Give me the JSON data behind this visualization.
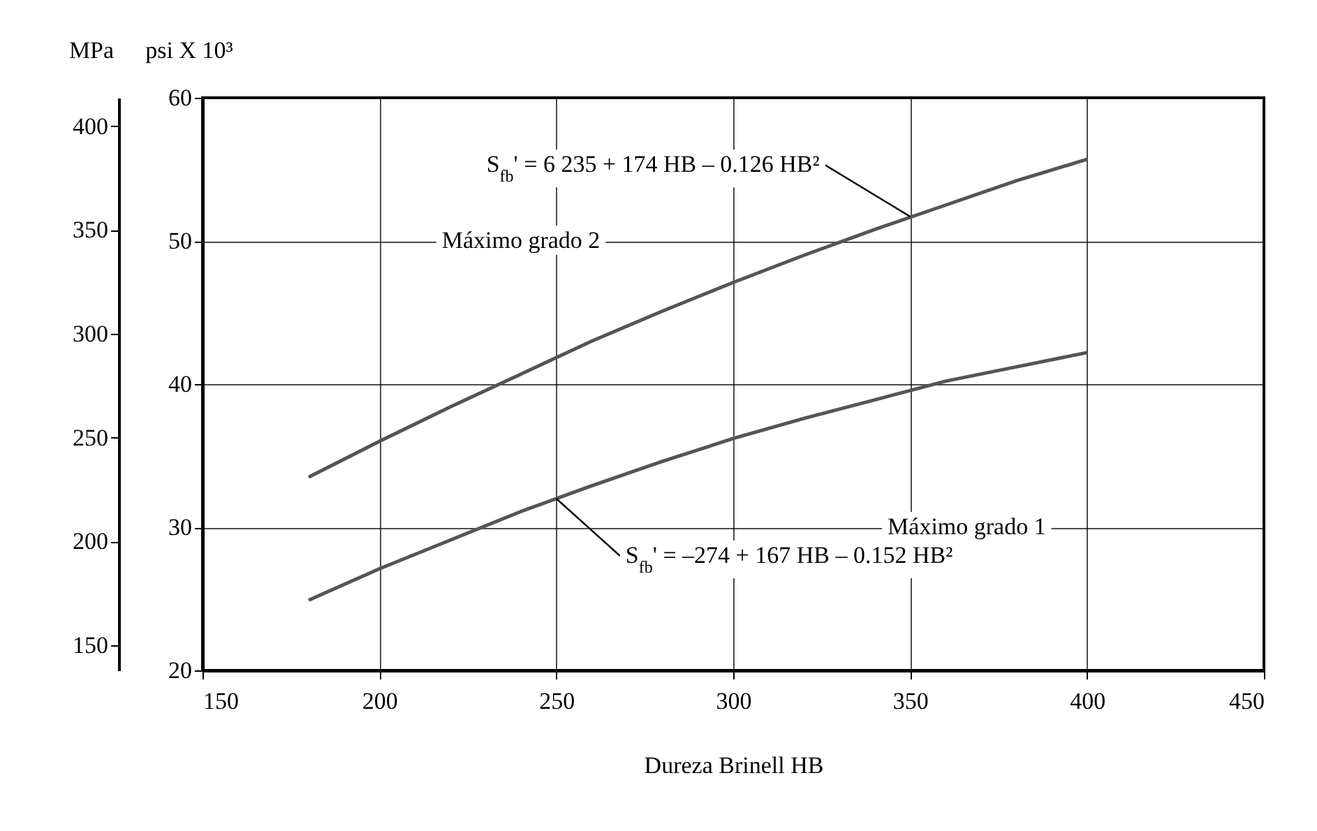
{
  "chart_data": {
    "type": "line",
    "xlabel": "Dureza Brinell HB",
    "ylabel": "psi X 10³",
    "y2label": "MPa",
    "x": [
      180,
      200,
      220,
      240,
      260,
      280,
      300,
      320,
      340,
      360,
      380,
      400
    ],
    "series": [
      {
        "color": "#555555",
        "values": [
          33.5,
          36.0,
          38.4,
          40.7,
          43.0,
          45.1,
          47.1,
          49.0,
          50.8,
          52.5,
          54.2,
          55.7
        ]
      },
      {
        "color": "#555555",
        "values": [
          24.9,
          27.1,
          29.1,
          31.1,
          32.9,
          34.6,
          36.2,
          37.6,
          38.9,
          40.2,
          41.2,
          42.2
        ]
      }
    ],
    "xlim": [
      150,
      450
    ],
    "xticks": [
      150,
      200,
      250,
      300,
      350,
      400,
      450
    ],
    "ylim": [
      20,
      60
    ],
    "yticks": [
      20,
      30,
      40,
      50,
      60
    ],
    "y2lim": [
      137.9,
      413.7
    ],
    "y2ticks": [
      150,
      200,
      250,
      300,
      350,
      400
    ],
    "grid": true,
    "annotations": [
      "Máximo grado 2",
      "Máximo grado 1",
      {
        "text": "S$_{fb}$' = 6 235 + 174 HB – 0.126 HB²",
        "x": 350,
        "y": 51.7
      },
      {
        "text": "S$_{fb}$' = –274 + 167 HB – 0.152 HB²",
        "x": 250,
        "y": 32.0
      }
    ]
  }
}
